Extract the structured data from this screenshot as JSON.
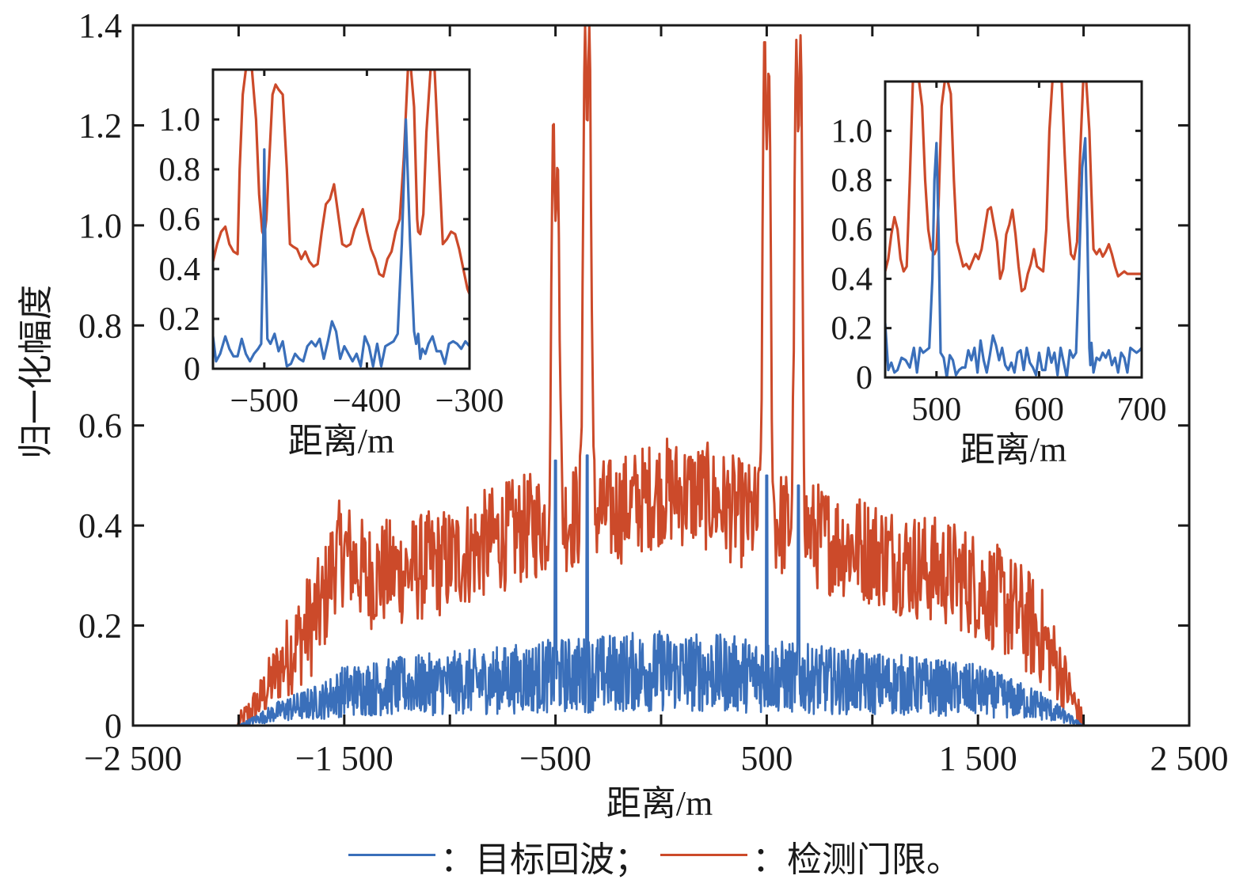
{
  "chart_data": {
    "type": "line",
    "main": {
      "xlabel": "距离/m",
      "ylabel": "归一化幅度",
      "xlim": [
        -2500,
        2500
      ],
      "ylim": [
        0,
        1.4
      ],
      "xticks": [
        -2500,
        -2000,
        -1500,
        -1000,
        -500,
        0,
        500,
        1000,
        1500,
        2000,
        2500
      ],
      "xtick_labels": [
        "−2 500",
        "",
        "−1 500",
        "",
        "−500",
        "",
        "500",
        "",
        "1 500",
        "",
        "2 500"
      ],
      "yticks": [
        0,
        0.2,
        0.4,
        0.6,
        0.8,
        1.0,
        1.2,
        1.4
      ],
      "ytick_labels": [
        "0",
        "0.2",
        "0.4",
        "0.6",
        "0.8",
        "1.0",
        "1.2",
        "1.4"
      ],
      "grid": false,
      "series": [
        {
          "name": "目标回波",
          "color": "#3a6fba",
          "support": [
            -2000,
            2000
          ],
          "noise_envelope": {
            "x": [
              -2000,
              -1800,
              -1600,
              -1500,
              -1200,
              -800,
              -500,
              0,
              500,
              800,
              1200,
              1500,
              1800,
              1900,
              2000
            ],
            "y": [
              0.0,
              0.03,
              0.05,
              0.07,
              0.08,
              0.09,
              0.1,
              0.11,
              0.1,
              0.09,
              0.08,
              0.07,
              0.04,
              0.02,
              0.0
            ]
          },
          "targets": [
            {
              "x": -500,
              "peak": 0.53
            },
            {
              "x": -350,
              "peak": 0.54
            },
            {
              "x": 500,
              "peak": 0.5
            },
            {
              "x": 650,
              "peak": 0.48
            }
          ]
        },
        {
          "name": "检测门限",
          "color": "#cc4a2a",
          "support": [
            -2300,
            2300
          ],
          "baseline": {
            "x": [
              -2300,
              -2000,
              -1900,
              -1800,
              -1700,
              -1600,
              -1550,
              -1500,
              -1400,
              -1200,
              -1000,
              -800,
              -600,
              -400,
              -200,
              0,
              200,
              400,
              600,
              800,
              1000,
              1200,
              1400,
              1500,
              1700,
              1800,
              1900,
              1950,
              2000,
              2300
            ],
            "y": [
              0,
              0,
              0.05,
              0.12,
              0.18,
              0.24,
              0.33,
              0.35,
              0.3,
              0.31,
              0.33,
              0.37,
              0.4,
              0.42,
              0.43,
              0.47,
              0.46,
              0.42,
              0.4,
              0.37,
              0.35,
              0.32,
              0.3,
              0.28,
              0.22,
              0.18,
              0.1,
              0.05,
              0,
              0
            ]
          },
          "peaks": [
            {
              "x": -510,
              "peak": 1.22
            },
            {
              "x": -490,
              "peak": 1.13
            },
            {
              "x": -360,
              "peak": 1.4
            },
            {
              "x": -340,
              "peak": 1.4
            },
            {
              "x": 490,
              "peak": 1.39
            },
            {
              "x": 510,
              "peak": 1.32
            },
            {
              "x": 640,
              "peak": 1.37
            },
            {
              "x": 660,
              "peak": 1.38
            }
          ]
        }
      ]
    },
    "insets": [
      {
        "position": "top-left",
        "xlabel": "距离/m",
        "xlim": [
          -550,
          -300
        ],
        "ylim": [
          0,
          1.2
        ],
        "xticks": [
          -500,
          -400,
          -300
        ],
        "xtick_labels": [
          "−500",
          "−400",
          "−300"
        ],
        "yticks": [
          0,
          0.2,
          0.4,
          0.6,
          0.8,
          1.0
        ],
        "ytick_labels": [
          "0",
          "0.2",
          "0.4",
          "0.6",
          "0.8",
          "1.0"
        ],
        "series": [
          {
            "name": "目标回波",
            "color": "#3a6fba",
            "x": [
              -550,
              -547,
              -543,
              -538,
              -534,
              -530,
              -526,
              -522,
              -518,
              -514,
              -510,
              -506,
              -503,
              -501,
              -500,
              -499,
              -497,
              -494,
              -490,
              -486,
              -482,
              -478,
              -474,
              -470,
              -466,
              -462,
              -458,
              -454,
              -450,
              -446,
              -442,
              -438,
              -434,
              -430,
              -426,
              -422,
              -418,
              -414,
              -410,
              -406,
              -402,
              -398,
              -394,
              -390,
              -386,
              -382,
              -378,
              -374,
              -370,
              -366,
              -362,
              -358,
              -354,
              -352,
              -350,
              -348,
              -346,
              -343,
              -340,
              -336,
              -332,
              -328,
              -324,
              -320,
              -316,
              -312,
              -308,
              -304,
              -300
            ],
            "y": [
              0.13,
              0.03,
              0.06,
              0.13,
              0.08,
              0.05,
              0.05,
              0.12,
              0.06,
              0.03,
              0.06,
              0.08,
              0.1,
              0.5,
              0.88,
              0.5,
              0.12,
              0.1,
              0.14,
              0.07,
              0.11,
              0.01,
              0.02,
              0.06,
              0.04,
              0.03,
              0.09,
              0.11,
              0.09,
              0.12,
              0.04,
              0.11,
              0.19,
              0.15,
              0.04,
              0.09,
              0.06,
              0.03,
              0.06,
              0.01,
              0.13,
              0.09,
              0.01,
              0.1,
              0.01,
              0.09,
              0.1,
              0.11,
              0.14,
              0.5,
              1.0,
              0.52,
              0.15,
              0.1,
              0.14,
              0.04,
              0.08,
              0.06,
              0.1,
              0.13,
              0.07,
              0.07,
              0.02,
              0.1,
              0.11,
              0.1,
              0.08,
              0.11,
              0.09
            ]
          },
          {
            "name": "检测门限",
            "color": "#cc4a2a",
            "x": [
              -550,
              -546,
              -542,
              -538,
              -534,
              -530,
              -526,
              -524,
              -521,
              -518,
              -516,
              -512,
              -508,
              -505,
              -502,
              -500,
              -498,
              -495,
              -492,
              -489,
              -486,
              -482,
              -478,
              -475,
              -472,
              -468,
              -464,
              -460,
              -456,
              -452,
              -448,
              -444,
              -440,
              -436,
              -432,
              -428,
              -424,
              -420,
              -416,
              -412,
              -408,
              -404,
              -400,
              -396,
              -392,
              -388,
              -384,
              -380,
              -376,
              -372,
              -368,
              -364,
              -360,
              -357,
              -354,
              -351,
              -350,
              -348,
              -345,
              -342,
              -338,
              -334,
              -330,
              -326,
              -322,
              -318,
              -314,
              -310,
              -306,
              -302,
              -300
            ],
            "y": [
              0.43,
              0.5,
              0.55,
              0.57,
              0.5,
              0.47,
              0.46,
              0.8,
              1.1,
              1.2,
              1.22,
              1.2,
              1.0,
              0.7,
              0.55,
              0.53,
              0.6,
              0.85,
              1.1,
              1.14,
              1.12,
              1.1,
              0.8,
              0.5,
              0.49,
              0.48,
              0.44,
              0.47,
              0.43,
              0.41,
              0.42,
              0.55,
              0.66,
              0.68,
              0.74,
              0.62,
              0.5,
              0.49,
              0.5,
              0.56,
              0.6,
              0.64,
              0.55,
              0.48,
              0.44,
              0.38,
              0.37,
              0.44,
              0.47,
              0.55,
              0.6,
              0.85,
              1.2,
              1.25,
              1.05,
              0.6,
              0.55,
              0.54,
              0.62,
              0.95,
              1.22,
              1.25,
              0.85,
              0.5,
              0.52,
              0.55,
              0.54,
              0.48,
              0.4,
              0.32,
              0.3
            ]
          }
        ]
      },
      {
        "position": "top-right",
        "xlabel": "距离/m",
        "xlim": [
          450,
          700
        ],
        "ylim": [
          0,
          1.2
        ],
        "xticks": [
          500,
          600,
          700
        ],
        "xtick_labels": [
          "500",
          "600",
          "700"
        ],
        "yticks": [
          0,
          0.2,
          0.4,
          0.6,
          0.8,
          1.0
        ],
        "ytick_labels": [
          "0",
          "0.2",
          "0.4",
          "0.6",
          "0.8",
          "1.0"
        ],
        "series": [
          {
            "name": "目标回波",
            "color": "#3a6fba",
            "x": [
              450,
              453,
              456,
              459,
              462,
              466,
              470,
              474,
              478,
              481,
              484,
              487,
              490,
              493,
              496,
              498,
              500,
              502,
              504,
              507,
              510,
              513,
              516,
              519,
              522,
              525,
              528,
              531,
              534,
              537,
              540,
              543,
              546,
              549,
              552,
              555,
              558,
              561,
              564,
              567,
              570,
              573,
              576,
              579,
              582,
              585,
              588,
              591,
              594,
              597,
              600,
              603,
              606,
              609,
              612,
              615,
              618,
              621,
              624,
              627,
              630,
              633,
              636,
              639,
              642,
              645,
              647,
              649,
              650,
              651,
              653,
              656,
              659,
              662,
              665,
              668,
              671,
              674,
              677,
              680,
              683,
              686,
              689,
              692,
              695,
              698,
              700
            ],
            "y": [
              0.22,
              0.03,
              0.06,
              0.02,
              0.03,
              0.08,
              0.07,
              0.04,
              0.12,
              0.02,
              0.12,
              0.1,
              0.11,
              0.12,
              0.4,
              0.8,
              0.95,
              0.6,
              0.1,
              0.08,
              0.0,
              0.09,
              0.07,
              0.01,
              0.03,
              0.04,
              0.04,
              0.11,
              0.07,
              0.12,
              0.02,
              0.15,
              0.07,
              0.02,
              0.09,
              0.17,
              0.13,
              0.07,
              0.12,
              0.05,
              0.03,
              0.06,
              0.02,
              0.1,
              0.11,
              0.03,
              0.12,
              0.06,
              0.04,
              0.01,
              0.1,
              0.03,
              0.03,
              0.12,
              0.06,
              0.1,
              0.01,
              0.12,
              0.06,
              0.0,
              0.11,
              0.08,
              0.1,
              0.45,
              0.85,
              0.97,
              0.6,
              0.12,
              0.05,
              0.14,
              0.02,
              0.08,
              0.07,
              0.1,
              0.08,
              0.11,
              0.05,
              0.08,
              0.02,
              0.1,
              0.08,
              0.02,
              0.12,
              0.11,
              0.1,
              0.11,
              0.12
            ]
          },
          {
            "name": "检测门限",
            "color": "#cc4a2a",
            "x": [
              450,
              453,
              456,
              459,
              462,
              465,
              468,
              471,
              474,
              477,
              480,
              483,
              486,
              489,
              492,
              495,
              498,
              500,
              502,
              505,
              508,
              511,
              514,
              517,
              520,
              523,
              526,
              529,
              532,
              535,
              538,
              541,
              544,
              547,
              550,
              553,
              556,
              559,
              562,
              565,
              568,
              571,
              574,
              577,
              580,
              583,
              586,
              589,
              592,
              595,
              598,
              601,
              604,
              607,
              610,
              613,
              616,
              619,
              622,
              625,
              628,
              631,
              634,
              637,
              640,
              643,
              646,
              649,
              651,
              653,
              656,
              659,
              662,
              665,
              668,
              671,
              674,
              677,
              680,
              683,
              686,
              689,
              692,
              695,
              698,
              700
            ],
            "y": [
              0.43,
              0.48,
              0.58,
              0.65,
              0.6,
              0.48,
              0.43,
              0.45,
              0.8,
              1.2,
              1.3,
              1.25,
              1.1,
              0.8,
              0.6,
              0.52,
              0.5,
              0.52,
              0.7,
              1.1,
              1.3,
              1.3,
              1.15,
              0.8,
              0.55,
              0.5,
              0.45,
              0.46,
              0.44,
              0.47,
              0.5,
              0.48,
              0.52,
              0.6,
              0.68,
              0.69,
              0.62,
              0.55,
              0.4,
              0.44,
              0.58,
              0.62,
              0.68,
              0.58,
              0.45,
              0.35,
              0.36,
              0.42,
              0.46,
              0.52,
              0.45,
              0.44,
              0.43,
              0.6,
              1.0,
              1.25,
              1.3,
              1.3,
              1.2,
              0.9,
              0.65,
              0.5,
              0.48,
              0.55,
              0.9,
              1.2,
              1.25,
              1.0,
              0.75,
              0.52,
              0.5,
              0.52,
              0.49,
              0.51,
              0.54,
              0.5,
              0.45,
              0.41,
              0.42,
              0.43,
              0.42,
              0.42,
              0.42,
              0.42,
              0.42,
              0.42
            ]
          }
        ]
      }
    ],
    "legend": {
      "placement": "bottom",
      "entries": [
        {
          "label": "：目标回波；",
          "color": "#3a6fba"
        },
        {
          "label": "：检测门限。",
          "color": "#cc4a2a"
        }
      ]
    }
  }
}
